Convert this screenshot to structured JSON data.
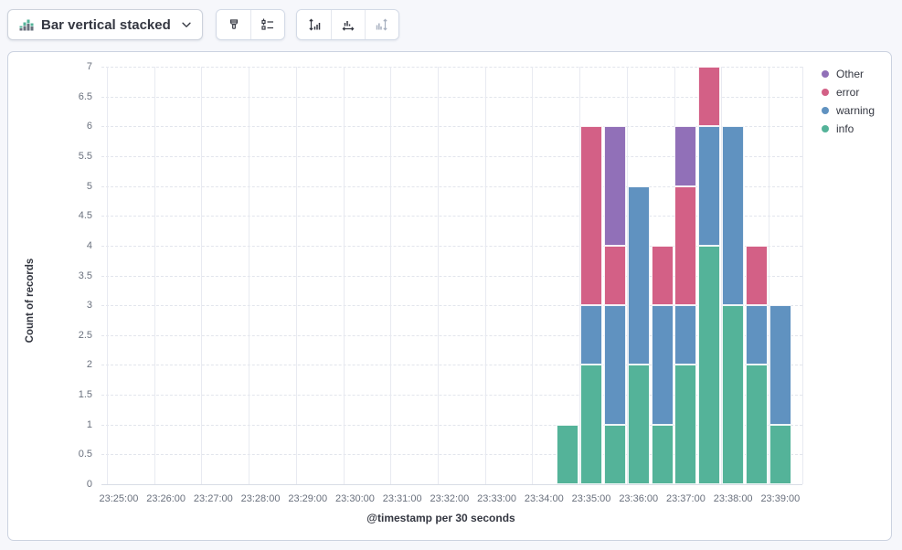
{
  "toolbar": {
    "chart_switcher": {
      "label": "Bar vertical stacked"
    },
    "buttons": {
      "visual_options": "visual-options",
      "legend_settings": "legend-settings",
      "left_axis": "left-axis",
      "bottom_axis": "bottom-axis",
      "right_axis": "right-axis"
    }
  },
  "chart_data": {
    "type": "bar",
    "stacked": true,
    "orientation": "vertical",
    "title": "",
    "xlabel": "@timestamp per 30 seconds",
    "ylabel": "Count of records",
    "ylim": [
      0,
      7
    ],
    "y_tick_step": 0.5,
    "bucket_seconds": 30,
    "x_axis_ticks": [
      "23:25:00",
      "23:26:00",
      "23:27:00",
      "23:28:00",
      "23:29:00",
      "23:30:00",
      "23:31:00",
      "23:32:00",
      "23:33:00",
      "23:34:00",
      "23:35:00",
      "23:36:00",
      "23:37:00",
      "23:38:00",
      "23:39:00"
    ],
    "grid": {
      "horizontal": "dashed",
      "vertical": "solid"
    },
    "legend_position": "right",
    "legend": [
      {
        "label": "Other",
        "color": "#9170B8"
      },
      {
        "label": "error",
        "color": "#D36086"
      },
      {
        "label": "warning",
        "color": "#6092C0"
      },
      {
        "label": "info",
        "color": "#54B399"
      }
    ],
    "stack_order_bottom_to_top": [
      "info",
      "warning",
      "error",
      "Other"
    ],
    "colors": {
      "info": "#54B399",
      "warning": "#6092C0",
      "error": "#D36086",
      "Other": "#9170B8"
    },
    "bars": [
      {
        "time": "23:34:30",
        "info": 1,
        "warning": 0,
        "error": 0,
        "Other": 0
      },
      {
        "time": "23:35:00",
        "info": 2,
        "warning": 1,
        "error": 3,
        "Other": 0
      },
      {
        "time": "23:35:30",
        "info": 1,
        "warning": 2,
        "error": 1,
        "Other": 2
      },
      {
        "time": "23:36:00",
        "info": 2,
        "warning": 3,
        "error": 0,
        "Other": 0
      },
      {
        "time": "23:36:30",
        "info": 1,
        "warning": 2,
        "error": 1,
        "Other": 0
      },
      {
        "time": "23:37:00",
        "info": 2,
        "warning": 1,
        "error": 2,
        "Other": 1
      },
      {
        "time": "23:37:30",
        "info": 4,
        "warning": 2,
        "error": 1,
        "Other": 0
      },
      {
        "time": "23:38:00",
        "info": 3,
        "warning": 3,
        "error": 0,
        "Other": 0
      },
      {
        "time": "23:38:30",
        "info": 2,
        "warning": 1,
        "error": 1,
        "Other": 0
      },
      {
        "time": "23:39:00",
        "info": 1,
        "warning": 2,
        "error": 0,
        "Other": 0
      }
    ]
  }
}
